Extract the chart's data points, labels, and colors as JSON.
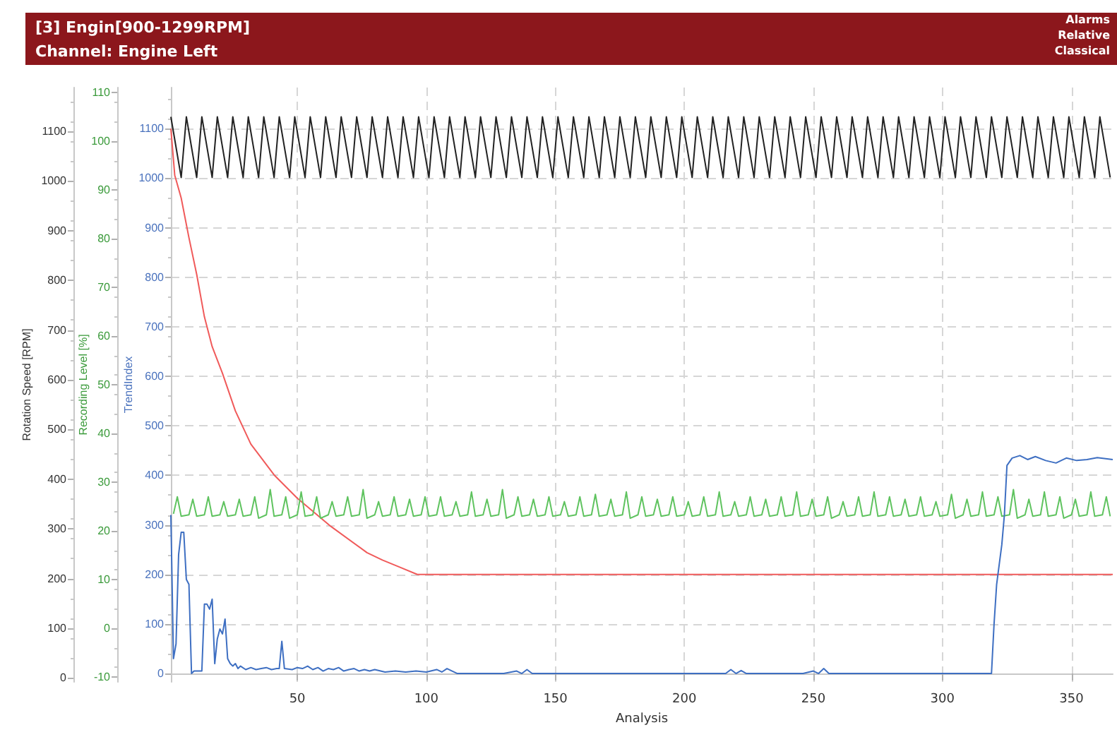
{
  "chart_data": {
    "type": "line",
    "title": "[3] Engin[900-1299RPM]",
    "subtitle": "Channel: Engine Left",
    "xlabel": "Analysis",
    "ylabel": "TrendIndex",
    "y2label": "Rotation Speed [RPM]",
    "y3label": "Recording Level [%]",
    "annotations": [
      "Alarms",
      "Relative",
      "Classical"
    ],
    "xlim": [
      1,
      366
    ],
    "xticks": [
      50,
      100,
      150,
      200,
      250,
      300,
      350
    ],
    "ylim": [
      -17,
      1183
    ],
    "yticks": [
      0,
      100,
      200,
      300,
      400,
      500,
      600,
      700,
      800,
      900,
      1000,
      1100
    ],
    "y2lim": [
      -8,
      1188
    ],
    "y2ticks": [
      0,
      100,
      200,
      300,
      400,
      500,
      600,
      700,
      800,
      900,
      1000,
      1100
    ],
    "y3lim": [
      -11,
      111
    ],
    "y3ticks": [
      -10,
      0,
      10,
      20,
      30,
      40,
      50,
      60,
      70,
      80,
      90,
      100,
      110
    ],
    "grid": true,
    "marker": "none",
    "line_style": "solid",
    "series": [
      {
        "color": "#222222",
        "axis": "y2",
        "x": [
          1,
          5,
          7,
          11,
          13,
          17,
          19,
          23,
          25,
          29,
          31,
          35,
          37,
          41,
          43,
          47,
          49,
          53,
          55,
          59,
          61,
          65,
          67,
          71,
          73,
          77,
          79,
          83,
          85,
          89,
          91,
          95,
          97,
          101,
          103,
          107,
          109,
          113,
          115,
          119,
          121,
          125,
          127,
          131,
          133,
          137,
          139,
          143,
          145,
          149,
          151,
          155,
          157,
          161,
          163,
          167,
          169,
          173,
          175,
          179,
          181,
          185,
          187,
          191,
          193,
          197,
          199,
          203,
          205,
          209,
          211,
          215,
          217,
          221,
          223,
          227,
          229,
          233,
          235,
          239,
          241,
          245,
          247,
          251,
          253,
          257,
          259,
          263,
          265,
          269,
          271,
          275,
          277,
          281,
          283,
          287,
          289,
          293,
          295,
          299,
          301,
          305,
          307,
          311,
          313,
          317,
          319,
          323,
          325,
          329,
          331,
          335,
          337,
          341,
          343,
          347,
          349,
          353,
          355,
          359,
          361,
          365
        ],
        "values": [
          1129,
          1007,
          1129,
          1007,
          1129,
          1007,
          1129,
          1007,
          1129,
          1007,
          1129,
          1007,
          1129,
          1007,
          1129,
          1007,
          1129,
          1007,
          1129,
          1007,
          1129,
          1007,
          1129,
          1007,
          1129,
          1007,
          1129,
          1007,
          1129,
          1007,
          1129,
          1007,
          1129,
          1007,
          1129,
          1007,
          1129,
          1007,
          1129,
          1007,
          1129,
          1007,
          1129,
          1007,
          1129,
          1007,
          1129,
          1007,
          1129,
          1007,
          1129,
          1007,
          1129,
          1007,
          1129,
          1007,
          1129,
          1007,
          1129,
          1007,
          1129,
          1007,
          1129,
          1007,
          1129,
          1007,
          1129,
          1007,
          1129,
          1007,
          1129,
          1007,
          1129,
          1007,
          1129,
          1007,
          1129,
          1007,
          1129,
          1007,
          1129,
          1007,
          1129,
          1007,
          1129,
          1007,
          1129,
          1007,
          1129,
          1007,
          1129,
          1007,
          1129,
          1007,
          1129,
          1007,
          1129,
          1007,
          1129,
          1007,
          1129,
          1007,
          1129,
          1007,
          1129,
          1007,
          1129,
          1007,
          1129,
          1007,
          1129,
          1007,
          1129,
          1007,
          1129,
          1007,
          1129,
          1007,
          1129,
          1007,
          1129,
          1007
        ]
      },
      {
        "color": "#f05a5a",
        "axis": "y",
        "x": [
          1,
          2.5,
          5,
          8,
          11,
          14,
          17,
          21,
          26,
          32,
          41,
          50,
          63,
          77,
          83,
          90,
          96.5,
          150,
          200,
          250,
          300,
          366
        ],
        "values": [
          1100,
          1006,
          960,
          880,
          806,
          720,
          660,
          606,
          530,
          463,
          401,
          354,
          297,
          244,
          229,
          214,
          200,
          200,
          200,
          200,
          200,
          200
        ]
      },
      {
        "color": "#5fc35f",
        "axis": "y3",
        "x": [
          2,
          3.5,
          5,
          8,
          9.5,
          11,
          14,
          15.5,
          17,
          20,
          21.5,
          23,
          26,
          27.5,
          29,
          32,
          33.5,
          35,
          38,
          39.5,
          41,
          44,
          45.5,
          47,
          50,
          51.5,
          53,
          56,
          57.5,
          59,
          62,
          63.5,
          65,
          68,
          69.5,
          71,
          74,
          75.5,
          77,
          80,
          81.5,
          83,
          86,
          87.5,
          89,
          92,
          93.5,
          95,
          98,
          99.5,
          101,
          104,
          105.5,
          107,
          110,
          111.5,
          113,
          116,
          117.5,
          119,
          122,
          123.5,
          125,
          128,
          129.5,
          131,
          134,
          135.5,
          137,
          140,
          141.5,
          143,
          146,
          147.5,
          149,
          152,
          153.5,
          155,
          158,
          159.5,
          161,
          164,
          165.5,
          167,
          170,
          171.5,
          173,
          176,
          177.5,
          179,
          182,
          183.5,
          185,
          188,
          189.5,
          191,
          194,
          195.5,
          197,
          200,
          201.5,
          203,
          206,
          207.5,
          209,
          212,
          213.5,
          215,
          218,
          219.5,
          221,
          224,
          225.5,
          227,
          230,
          231.5,
          233,
          236,
          237.5,
          239,
          242,
          243.5,
          245,
          248,
          249.5,
          251,
          254,
          255.5,
          257,
          260,
          261.5,
          263,
          266,
          267.5,
          269,
          272,
          273.5,
          275,
          278,
          279.5,
          281,
          284,
          285.5,
          287,
          290,
          291.5,
          293,
          296,
          297.5,
          299,
          302,
          303.5,
          305,
          308,
          309.5,
          311,
          314,
          315.5,
          317,
          320,
          321.5,
          323,
          326,
          327.5,
          329,
          332,
          333.5,
          335,
          338,
          339.5,
          341,
          344,
          345.5,
          347,
          350,
          351.5,
          353,
          356,
          357.5,
          359,
          362,
          363.5,
          365
        ],
        "values": [
          23.5,
          27,
          23,
          23.3,
          26.5,
          23,
          23.3,
          27,
          23,
          23.3,
          26,
          23,
          23.3,
          26.5,
          23,
          23.3,
          27,
          22.6,
          23.3,
          28.5,
          23,
          23.3,
          27,
          22.6,
          23.3,
          28,
          23,
          23.3,
          27,
          22.6,
          23.3,
          26,
          23,
          23.3,
          27,
          23,
          23.3,
          28.5,
          22.6,
          23.3,
          26,
          23,
          23.3,
          27,
          23,
          23.3,
          26.5,
          23,
          23.3,
          27,
          23,
          23.3,
          27,
          23,
          23.3,
          26,
          23,
          23.3,
          28,
          23,
          23.3,
          26.5,
          23,
          23.3,
          28.5,
          22.6,
          23.3,
          27,
          23,
          23.3,
          26.5,
          23,
          23.3,
          27,
          23,
          23.3,
          26,
          23,
          23.3,
          27,
          23,
          23.3,
          27.5,
          23,
          23.3,
          26.5,
          23,
          23.3,
          28,
          22.6,
          23.3,
          27,
          23,
          23.3,
          26.5,
          23,
          23.3,
          27,
          23,
          23.3,
          26,
          23,
          23.3,
          27,
          23,
          23.3,
          28,
          23,
          23.3,
          26,
          23,
          23.3,
          27,
          23,
          23.3,
          26.5,
          23,
          23.3,
          27,
          23,
          23.3,
          28,
          23,
          23.3,
          26.5,
          23,
          23.3,
          27,
          22.6,
          23.3,
          26,
          23,
          23.3,
          27,
          23,
          23.3,
          28,
          23,
          23.3,
          27,
          23,
          23.3,
          26.5,
          23,
          23.3,
          27,
          23,
          23.3,
          26,
          23,
          23.3,
          27.5,
          22.6,
          23.3,
          26.5,
          23,
          23.3,
          28,
          23,
          23.3,
          27,
          23,
          23.3,
          28.5,
          22.6,
          23.3,
          26.5,
          23,
          23.3,
          28,
          23,
          23.3,
          27,
          22.6,
          23.3,
          26.5,
          23,
          23.3,
          28,
          23,
          23.3,
          27,
          23
        ]
      },
      {
        "color": "#3e6fc2",
        "axis": "y",
        "x": [
          1,
          2,
          3,
          4,
          5,
          6,
          7,
          8,
          9,
          10,
          12,
          13,
          14,
          15,
          16,
          17,
          18,
          19,
          20,
          21,
          22,
          23,
          24,
          25,
          26,
          27,
          28,
          30,
          32,
          34,
          36,
          38,
          40,
          42,
          43,
          44,
          45,
          48,
          50,
          52,
          54,
          56,
          58,
          60,
          62,
          64,
          66,
          68,
          70,
          72,
          74,
          76,
          78,
          80,
          84,
          88,
          92,
          96,
          100,
          104,
          106,
          108,
          110,
          112,
          130,
          135,
          137,
          139,
          141,
          145,
          200,
          216,
          218,
          220,
          222,
          224,
          246,
          250,
          252,
          254,
          256,
          318,
          319,
          320,
          321,
          322,
          323,
          324,
          325,
          327,
          330,
          333,
          336,
          340,
          344,
          348,
          352,
          356,
          360,
          366
        ],
        "values": [
          320,
          30,
          60,
          240,
          285,
          285,
          190,
          180,
          0,
          5,
          5,
          5,
          140,
          140,
          130,
          150,
          20,
          70,
          90,
          80,
          110,
          30,
          20,
          15,
          20,
          10,
          15,
          8,
          12,
          8,
          10,
          12,
          8,
          10,
          10,
          65,
          10,
          8,
          12,
          10,
          15,
          8,
          12,
          5,
          10,
          8,
          12,
          5,
          8,
          10,
          5,
          8,
          5,
          8,
          3,
          5,
          3,
          5,
          3,
          8,
          3,
          10,
          5,
          0,
          0,
          5,
          0,
          8,
          0,
          0,
          0,
          0,
          8,
          0,
          6,
          0,
          0,
          5,
          0,
          10,
          0,
          0,
          0,
          100,
          180,
          220,
          260,
          320,
          420,
          435,
          440,
          432,
          438,
          430,
          425,
          435,
          430,
          432,
          436,
          432
        ]
      }
    ]
  }
}
